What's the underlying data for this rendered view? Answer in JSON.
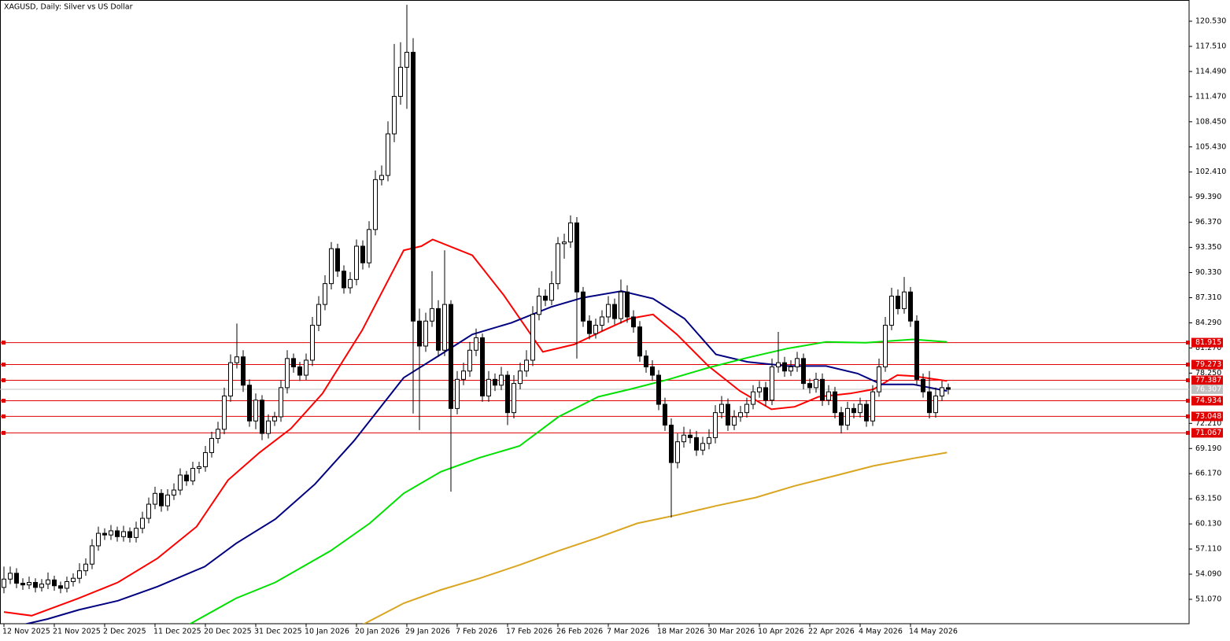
{
  "chart_data": {
    "type": "candlestick",
    "title": "XAGUSD, Daily:  Silver vs US Dollar",
    "categories": [
      "12 Nov 2025",
      null,
      null,
      null,
      null,
      null,
      null,
      null,
      "21 Nov 2025",
      null,
      null,
      null,
      null,
      null,
      null,
      null,
      "2 Dec 2025",
      null,
      null,
      null,
      null,
      null,
      null,
      null,
      "11 Dec 2025",
      null,
      null,
      null,
      null,
      null,
      null,
      null,
      "20 Dec 2025",
      null,
      null,
      null,
      null,
      null,
      null,
      null,
      "31 Dec 2025",
      null,
      null,
      null,
      null,
      null,
      null,
      null,
      "10 Jan 2026",
      null,
      null,
      null,
      null,
      null,
      null,
      null,
      "20 Jan 2026",
      null,
      null,
      null,
      null,
      null,
      null,
      null,
      "29 Jan 2026",
      null,
      null,
      null,
      null,
      null,
      null,
      null,
      "7 Feb 2026",
      null,
      null,
      null,
      null,
      null,
      null,
      null,
      "17 Feb 2026",
      null,
      null,
      null,
      null,
      null,
      null,
      null,
      "26 Feb 2026",
      null,
      null,
      null,
      null,
      null,
      null,
      null,
      "7 Mar 2026",
      null,
      null,
      null,
      null,
      null,
      null,
      null,
      "18 Mar 2026",
      null,
      null,
      null,
      null,
      null,
      null,
      null,
      "30 Mar 2026",
      null,
      null,
      null,
      null,
      null,
      null,
      null,
      "10 Apr 2026",
      null,
      null,
      null,
      null,
      null,
      null,
      null,
      "22 Apr 2026",
      null,
      null,
      null,
      null,
      null,
      null,
      null,
      "4 May 2026",
      null,
      null,
      null,
      null,
      null,
      null,
      null,
      "14 May 2026",
      null,
      null,
      null,
      null,
      null,
      null
    ],
    "open": [
      52.5,
      53.5,
      54.2,
      53.0,
      52.8,
      53.1,
      52.5,
      52.9,
      53.4,
      52.7,
      52.4,
      53.2,
      53.6,
      54.5,
      55.3,
      57.5,
      59.0,
      58.8,
      59.3,
      58.6,
      59.2,
      58.5,
      59.6,
      60.8,
      62.5,
      63.8,
      62.3,
      63.6,
      64.2,
      66.0,
      65.3,
      66.8,
      67.0,
      68.7,
      70.4,
      71.5,
      75.5,
      79.5,
      80.2,
      76.8,
      72.5,
      75.0,
      71.0,
      72.5,
      73.0,
      76.5,
      80.0,
      79.0,
      78.0,
      79.8,
      84.0,
      86.5,
      89.0,
      93.2,
      90.5,
      88.5,
      89.5,
      93.5,
      91.5,
      95.5,
      101.5,
      102.0,
      107.0,
      111.5,
      115.0,
      116.8,
      84.5,
      81.5,
      84.5,
      86.0,
      81.0,
      86.5,
      74.0,
      77.5,
      78.5,
      81.0,
      82.5,
      75.5,
      77.5,
      76.8,
      78.0,
      73.5,
      77.0,
      78.5,
      79.8,
      85.3,
      87.5,
      87.0,
      89.0,
      93.8,
      94.0,
      96.3,
      88.0,
      84.5,
      83.0,
      84.0,
      85.0,
      86.5,
      84.8,
      88.0,
      85.0,
      83.8,
      80.3,
      79.0,
      78.0,
      74.5,
      72.0,
      67.5,
      70.0,
      70.8,
      70.5,
      69.0,
      69.8,
      70.5,
      73.5,
      74.5,
      72.0,
      73.0,
      73.5,
      74.5,
      76.0,
      76.5,
      75.0,
      79.0,
      79.5,
      78.5,
      79.0,
      80.0,
      77.0,
      76.5,
      77.5,
      75.0,
      76.0,
      73.5,
      72.0,
      74.0,
      73.5,
      74.5,
      72.5,
      76.0,
      79.0,
      84.0,
      87.5,
      86.0,
      88.0,
      84.5,
      77.5,
      76.0,
      73.5,
      75.5,
      76.5
    ],
    "high": [
      55.0,
      55.0,
      54.8,
      53.6,
      53.8,
      53.6,
      53.5,
      54.3,
      53.9,
      53.2,
      53.8,
      54.2,
      55.4,
      56.0,
      58.3,
      59.8,
      59.6,
      60.0,
      59.8,
      59.9,
      59.7,
      60.4,
      61.6,
      63.3,
      64.6,
      64.3,
      64.3,
      65.0,
      66.8,
      66.5,
      67.6,
      67.6,
      69.5,
      71.2,
      72.4,
      76.5,
      80.5,
      84.2,
      81.0,
      77.5,
      75.8,
      75.6,
      73.3,
      73.6,
      77.4,
      81.0,
      80.6,
      79.6,
      80.6,
      85.0,
      87.5,
      90.0,
      94.0,
      93.8,
      91.2,
      90.4,
      94.3,
      94.2,
      96.5,
      102.6,
      103.2,
      108.5,
      117.8,
      118.0,
      122.5,
      118.5,
      86.0,
      85.5,
      90.5,
      87.0,
      93.0,
      87.0,
      78.5,
      79.5,
      82.0,
      83.6,
      83.0,
      78.5,
      78.2,
      79.0,
      78.5,
      78.0,
      79.5,
      81.0,
      86.3,
      88.5,
      88.3,
      90.5,
      94.6,
      95.0,
      97.2,
      97.0,
      88.6,
      85.2,
      84.8,
      85.8,
      87.5,
      87.2,
      89.5,
      88.8,
      85.8,
      84.5,
      81.0,
      79.8,
      78.6,
      75.3,
      72.8,
      71.0,
      71.8,
      71.5,
      71.3,
      70.6,
      71.5,
      74.4,
      75.5,
      75.2,
      73.8,
      74.3,
      75.3,
      76.8,
      77.3,
      77.2,
      80.0,
      83.2,
      80.2,
      79.8,
      80.8,
      80.6,
      77.6,
      78.3,
      78.2,
      76.8,
      76.6,
      74.2,
      74.8,
      74.6,
      75.3,
      75.0,
      76.8,
      80.0,
      85.0,
      88.5,
      88.3,
      89.8,
      88.6,
      85.2,
      78.2,
      78.5,
      76.5,
      77.3,
      77.0
    ],
    "low": [
      51.8,
      52.9,
      52.4,
      52.2,
      52.3,
      51.9,
      52.0,
      52.3,
      52.1,
      51.8,
      51.9,
      52.6,
      53.0,
      53.9,
      54.7,
      56.9,
      58.2,
      58.2,
      58.0,
      58.0,
      57.9,
      57.9,
      59.0,
      60.2,
      61.9,
      61.6,
      61.7,
      63.0,
      63.6,
      64.7,
      64.8,
      66.2,
      66.4,
      68.1,
      69.8,
      70.9,
      74.8,
      78.8,
      76.0,
      71.8,
      71.5,
      70.2,
      70.4,
      71.9,
      72.4,
      75.8,
      78.3,
      77.3,
      77.4,
      79.1,
      83.3,
      85.8,
      88.3,
      89.8,
      87.8,
      87.8,
      88.8,
      90.7,
      90.9,
      94.8,
      100.8,
      101.3,
      106.0,
      110.5,
      110.0,
      73.4,
      71.4,
      80.8,
      83.8,
      80.2,
      80.3,
      64.0,
      73.3,
      76.8,
      77.8,
      80.3,
      74.8,
      74.8,
      76.1,
      76.2,
      72.0,
      72.8,
      76.3,
      77.8,
      79.1,
      84.6,
      86.3,
      86.4,
      88.3,
      92.0,
      93.3,
      80.0,
      83.8,
      82.3,
      82.4,
      83.3,
      84.3,
      84.1,
      84.2,
      84.3,
      83.1,
      79.6,
      78.3,
      77.3,
      73.8,
      71.3,
      60.9,
      66.8,
      69.3,
      69.8,
      68.3,
      68.4,
      69.1,
      69.8,
      72.8,
      71.3,
      71.4,
      72.4,
      72.9,
      73.9,
      75.3,
      74.3,
      74.4,
      78.3,
      77.8,
      77.9,
      78.4,
      76.3,
      75.8,
      75.9,
      74.3,
      74.4,
      72.8,
      71.0,
      71.4,
      72.8,
      72.9,
      71.8,
      71.9,
      75.4,
      78.4,
      83.4,
      85.3,
      85.4,
      83.8,
      76.8,
      75.3,
      72.8,
      72.9,
      74.9,
      75.7
    ],
    "close": [
      53.5,
      54.2,
      53.0,
      52.8,
      53.1,
      52.5,
      52.9,
      53.4,
      52.7,
      52.4,
      53.2,
      53.6,
      54.5,
      55.3,
      57.5,
      59.0,
      58.8,
      59.3,
      58.6,
      59.2,
      58.5,
      59.6,
      60.8,
      62.5,
      63.8,
      62.3,
      63.6,
      64.2,
      66.0,
      65.3,
      66.8,
      67.0,
      68.7,
      70.4,
      71.5,
      75.5,
      79.5,
      80.2,
      76.8,
      72.5,
      75.0,
      71.0,
      72.5,
      73.0,
      76.5,
      80.0,
      79.0,
      78.0,
      79.8,
      84.0,
      86.5,
      89.0,
      93.2,
      90.5,
      88.5,
      89.5,
      93.5,
      91.5,
      95.5,
      101.5,
      102.0,
      107.0,
      111.5,
      115.0,
      116.8,
      84.5,
      81.5,
      84.5,
      86.0,
      81.0,
      86.5,
      74.0,
      77.5,
      78.5,
      81.0,
      82.5,
      75.5,
      77.5,
      76.8,
      78.0,
      73.5,
      77.0,
      78.5,
      79.8,
      85.3,
      87.5,
      87.0,
      89.0,
      93.8,
      94.0,
      96.3,
      88.0,
      84.5,
      83.0,
      84.0,
      85.0,
      86.5,
      84.8,
      88.0,
      85.0,
      83.8,
      80.3,
      79.0,
      78.0,
      74.5,
      72.0,
      67.5,
      70.0,
      70.8,
      70.5,
      69.0,
      69.8,
      70.5,
      73.5,
      74.5,
      72.0,
      73.0,
      73.5,
      74.5,
      76.0,
      76.5,
      75.0,
      79.0,
      79.5,
      78.5,
      79.0,
      80.0,
      77.0,
      76.5,
      77.5,
      75.0,
      76.0,
      73.5,
      72.0,
      74.0,
      73.5,
      74.5,
      72.5,
      76.0,
      79.0,
      84.0,
      87.5,
      86.0,
      88.0,
      84.5,
      77.5,
      76.0,
      73.5,
      75.5,
      76.5,
      76.3
    ],
    "up_color": "#ffffff",
    "down_color": "#000000",
    "ma_lines": [
      {
        "color": "#ff0000",
        "x": [
          0,
          4.4,
          11.9,
          18.1,
          24.4,
          30.6,
          35.6,
          40.6,
          45.6,
          50.6,
          56.9,
          63.5,
          66.3,
          68.1,
          74.4,
          79.4,
          85.6,
          90.6,
          95.6,
          99.4,
          103.1,
          106.9,
          111.9,
          116.9,
          121.9,
          125.6,
          129.4,
          134.4,
          138.1,
          141.9,
          144.4,
          149.8
        ],
        "values": [
          49.55,
          49.1,
          51.2,
          53.1,
          56.0,
          59.8,
          65.4,
          68.7,
          71.6,
          75.8,
          83.4,
          93.0,
          93.5,
          94.3,
          92.4,
          87.6,
          80.8,
          81.7,
          83.5,
          84.8,
          85.3,
          82.9,
          79.1,
          76.1,
          73.9,
          74.2,
          75.4,
          75.8,
          76.3,
          78.0,
          77.9,
          77.3
        ]
      },
      {
        "color": "#000080",
        "x": [
          0,
          6.9,
          11.9,
          18.1,
          24.4,
          31.9,
          36.9,
          43.1,
          49.4,
          55.6,
          63.5,
          69.4,
          74.4,
          80.6,
          86.9,
          91.9,
          98.1,
          103.1,
          108.1,
          113.1,
          118.1,
          124.4,
          130.6,
          135.6,
          139.4,
          144.4,
          149.8
        ],
        "values": [
          47.5,
          48.7,
          49.8,
          50.9,
          52.6,
          55.0,
          57.8,
          60.7,
          64.9,
          70.1,
          77.7,
          80.5,
          82.9,
          84.3,
          86.2,
          87.3,
          88.1,
          87.2,
          84.8,
          80.5,
          79.6,
          79.1,
          79.1,
          78.2,
          76.9,
          76.9,
          76.1
        ]
      },
      {
        "color": "#00e000",
        "x": [
          28.1,
          36.9,
          43.1,
          51.9,
          58.1,
          63.5,
          69.4,
          75.6,
          81.9,
          88.1,
          94.4,
          99.4,
          105.6,
          111.9,
          118.1,
          124.4,
          130.6,
          136.9,
          144.4,
          149.8
        ],
        "values": [
          47.5,
          51.2,
          53.1,
          56.9,
          60.2,
          63.8,
          66.4,
          68.1,
          69.5,
          73.0,
          75.4,
          76.3,
          77.5,
          78.9,
          80.1,
          81.2,
          82.0,
          81.9,
          82.3,
          82.0
        ]
      },
      {
        "color": "#daa520",
        "x": [
          56.9,
          63.5,
          69.4,
          75.6,
          81.9,
          88.1,
          94.4,
          100.6,
          106.9,
          113.1,
          119.4,
          125.6,
          131.9,
          138.1,
          144.4,
          149.8
        ],
        "values": [
          48.0,
          50.6,
          52.2,
          53.6,
          55.2,
          56.9,
          58.5,
          60.2,
          61.2,
          62.3,
          63.3,
          64.7,
          65.9,
          67.1,
          68.0,
          68.7
        ]
      }
    ],
    "levels": {
      "color": "#e00000",
      "values": [
        81.915,
        79.273,
        77.387,
        74.934,
        73.048,
        71.067
      ]
    },
    "current_price": {
      "value": 76.307,
      "color": "#c0c0c0"
    },
    "ylim": [
      48.14,
      123.08
    ],
    "yticks": [
      {
        "value": 120.53,
        "label": "120.530"
      },
      {
        "value": 117.51,
        "label": "117.510"
      },
      {
        "value": 114.49,
        "label": "114.490"
      },
      {
        "value": 111.47,
        "label": "111.470"
      },
      {
        "value": 108.45,
        "label": "108.450"
      },
      {
        "value": 105.43,
        "label": "105.430"
      },
      {
        "value": 102.41,
        "label": "102.410"
      },
      {
        "value": 99.39,
        "label": "99.390"
      },
      {
        "value": 96.37,
        "label": "96.370"
      },
      {
        "value": 93.35,
        "label": "93.350"
      },
      {
        "value": 90.33,
        "label": "90.330"
      },
      {
        "value": 87.31,
        "label": "87.310"
      },
      {
        "value": 84.29,
        "label": "84.290"
      },
      {
        "value": 81.27,
        "label": "81.270"
      },
      {
        "value": 78.25,
        "label": "78.250"
      },
      {
        "value": 72.21,
        "label": "72.210"
      },
      {
        "value": 69.19,
        "label": "69.190"
      },
      {
        "value": 66.17,
        "label": "66.170"
      },
      {
        "value": 63.15,
        "label": "63.150"
      },
      {
        "value": 60.13,
        "label": "60.130"
      },
      {
        "value": 57.11,
        "label": "57.110"
      },
      {
        "value": 54.09,
        "label": "54.090"
      },
      {
        "value": 51.07,
        "label": "51.070"
      }
    ]
  }
}
